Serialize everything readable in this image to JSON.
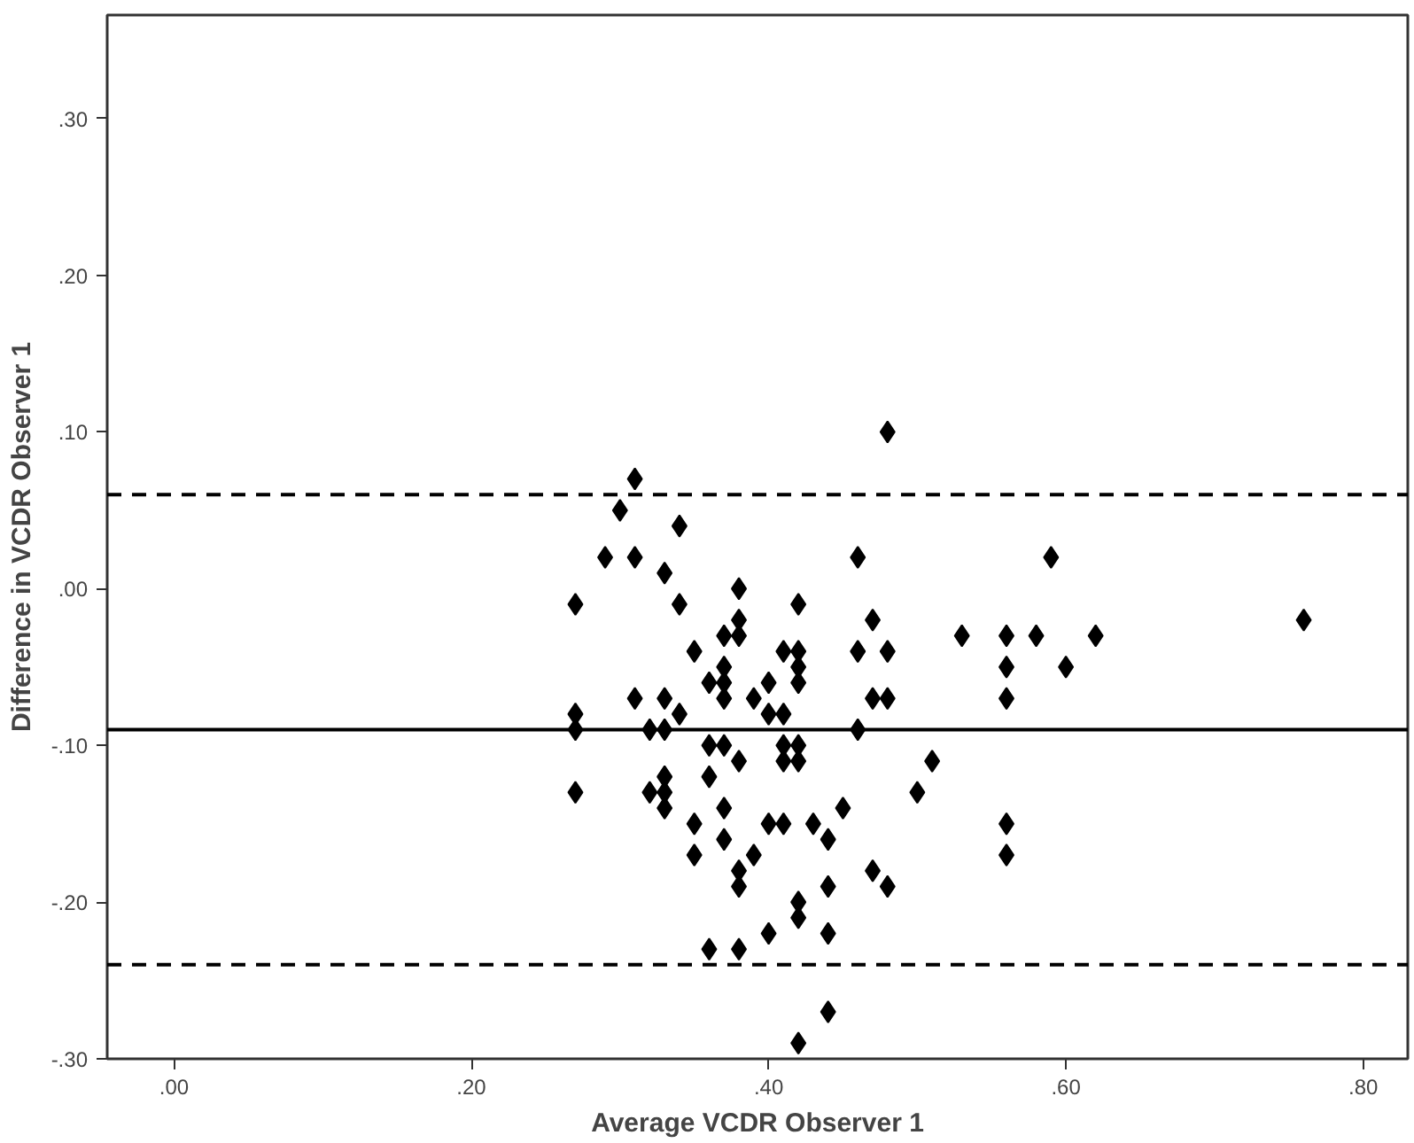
{
  "chart_data": {
    "type": "scatter",
    "xlabel": "Average VCDR Observer 1",
    "ylabel": "Difference in VCDR Observer 1",
    "xlim": [
      -0.045,
      0.83
    ],
    "ylim": [
      -0.3,
      0.366
    ],
    "xticks": [
      {
        "value": 0,
        "label": ".00"
      },
      {
        "value": 0.2,
        "label": ".20"
      },
      {
        "value": 0.4,
        "label": ".40"
      },
      {
        "value": 0.6,
        "label": ".60"
      },
      {
        "value": 0.8,
        "label": ".80"
      }
    ],
    "yticks": [
      {
        "value": -0.3,
        "label": "-.30"
      },
      {
        "value": -0.2,
        "label": "-.20"
      },
      {
        "value": -0.1,
        "label": "-.10"
      },
      {
        "value": 0,
        "label": ".00"
      },
      {
        "value": 0.1,
        "label": ".10"
      },
      {
        "value": 0.2,
        "label": ".20"
      },
      {
        "value": 0.3,
        "label": ".30"
      }
    ],
    "grid": false,
    "marker": "diamond",
    "series": [
      {
        "color": "#000000",
        "x": [
          0.48,
          0.31,
          0.3,
          0.34,
          0.29,
          0.31,
          0.33,
          0.46,
          0.27,
          0.34,
          0.38,
          0.42,
          0.47,
          0.53,
          0.38,
          0.37,
          0.38,
          0.35,
          0.41,
          0.42,
          0.42,
          0.42,
          0.46,
          0.48,
          0.37,
          0.36,
          0.37,
          0.4,
          0.37,
          0.39,
          0.4,
          0.41,
          0.31,
          0.33,
          0.34,
          0.27,
          0.27,
          0.32,
          0.33,
          0.47,
          0.48,
          0.46,
          0.36,
          0.37,
          0.41,
          0.42,
          0.38,
          0.41,
          0.42,
          0.51,
          0.27,
          0.32,
          0.33,
          0.33,
          0.33,
          0.36,
          0.37,
          0.35,
          0.37,
          0.35,
          0.39,
          0.4,
          0.41,
          0.43,
          0.44,
          0.45,
          0.38,
          0.38,
          0.44,
          0.47,
          0.48,
          0.42,
          0.42,
          0.4,
          0.44,
          0.36,
          0.38,
          0.44,
          0.42,
          0.5,
          0.59,
          0.56,
          0.58,
          0.62,
          0.56,
          0.56,
          0.6,
          0.76,
          0.56,
          0.56
        ],
        "values": [
          0.1,
          0.07,
          0.05,
          0.04,
          0.02,
          0.02,
          0.01,
          0.02,
          -0.01,
          -0.01,
          0.0,
          -0.01,
          -0.02,
          -0.03,
          -0.02,
          -0.03,
          -0.03,
          -0.04,
          -0.04,
          -0.04,
          -0.05,
          -0.06,
          -0.04,
          -0.04,
          -0.05,
          -0.06,
          -0.06,
          -0.06,
          -0.07,
          -0.07,
          -0.08,
          -0.08,
          -0.07,
          -0.07,
          -0.08,
          -0.08,
          -0.09,
          -0.09,
          -0.09,
          -0.07,
          -0.07,
          -0.09,
          -0.1,
          -0.1,
          -0.1,
          -0.1,
          -0.11,
          -0.11,
          -0.11,
          -0.11,
          -0.13,
          -0.13,
          -0.12,
          -0.13,
          -0.14,
          -0.12,
          -0.14,
          -0.15,
          -0.16,
          -0.17,
          -0.17,
          -0.15,
          -0.15,
          -0.15,
          -0.16,
          -0.14,
          -0.18,
          -0.19,
          -0.19,
          -0.18,
          -0.19,
          -0.2,
          -0.21,
          -0.22,
          -0.22,
          -0.23,
          -0.23,
          -0.27,
          -0.29,
          -0.13,
          0.02,
          -0.03,
          -0.03,
          -0.03,
          -0.05,
          -0.07,
          -0.05,
          -0.02,
          -0.15,
          -0.17
        ]
      }
    ],
    "ref_lines": [
      {
        "axis": "y",
        "value": 0.06,
        "line_style": "dashed",
        "color": "#000000"
      },
      {
        "axis": "y",
        "value": -0.09,
        "line_style": "solid",
        "color": "#000000"
      },
      {
        "axis": "y",
        "value": -0.24,
        "line_style": "dashed",
        "color": "#000000"
      }
    ]
  }
}
